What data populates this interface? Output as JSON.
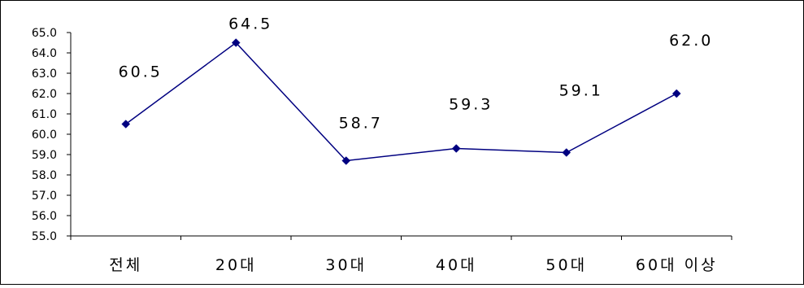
{
  "chart_data": {
    "type": "line",
    "title": "",
    "xlabel": "",
    "ylabel": "",
    "categories": [
      "전체",
      "20대",
      "30대",
      "40대",
      "50대",
      "60대 이상"
    ],
    "series": [
      {
        "values": [
          60.5,
          64.5,
          58.7,
          59.3,
          59.1,
          62.0
        ],
        "color": "#000080"
      }
    ],
    "data_labels": [
      "60.5",
      "64.5",
      "58.7",
      "59.3",
      "59.1",
      "62.0"
    ],
    "ylim": [
      55.0,
      65.0
    ],
    "yticks": [
      "55.0",
      "56.0",
      "57.0",
      "58.0",
      "59.0",
      "60.0",
      "61.0",
      "62.0",
      "63.0",
      "64.0",
      "65.0"
    ],
    "grid": false,
    "legend": "none",
    "marker": "diamond"
  }
}
